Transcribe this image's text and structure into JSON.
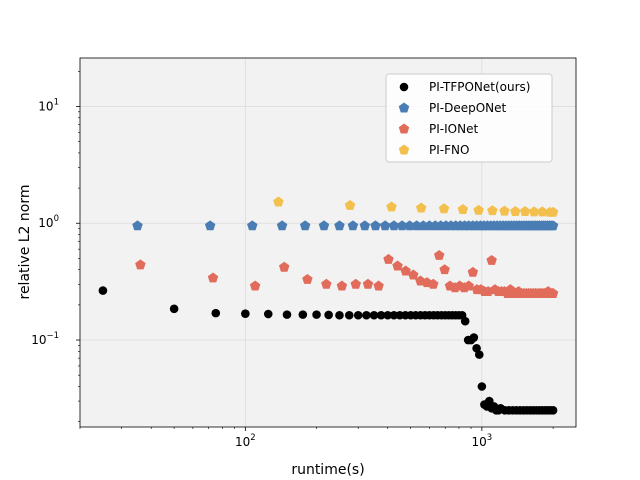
{
  "chart_data": {
    "type": "scatter",
    "title": "",
    "xlabel": "runtime(s)",
    "ylabel": "relative L2 norm",
    "xscale": "log",
    "yscale": "log",
    "xlim": [
      20,
      2500
    ],
    "ylim": [
      0.018,
      26
    ],
    "grid": true,
    "legend_position": "top-right",
    "x_ticks": [
      {
        "value": 100,
        "base": "10",
        "exp": "2"
      },
      {
        "value": 1000,
        "base": "10",
        "exp": "3"
      }
    ],
    "y_ticks": [
      {
        "value": 0.1,
        "base": "10",
        "exp": "−1"
      },
      {
        "value": 1,
        "base": "10",
        "exp": "0"
      },
      {
        "value": 10,
        "base": "10",
        "exp": "1"
      }
    ],
    "series": [
      {
        "name": "PI-TFPONet(ours)",
        "color": "#000000",
        "marker": "circle",
        "points": [
          [
            25,
            0.265
          ],
          [
            50,
            0.185
          ],
          [
            75,
            0.17
          ],
          [
            100,
            0.168
          ],
          [
            125,
            0.167
          ],
          [
            150,
            0.165
          ],
          [
            175,
            0.165
          ],
          [
            200,
            0.165
          ],
          [
            225,
            0.164
          ],
          [
            250,
            0.163
          ],
          [
            275,
            0.163
          ],
          [
            300,
            0.163
          ],
          [
            325,
            0.163
          ],
          [
            350,
            0.163
          ],
          [
            375,
            0.163
          ],
          [
            400,
            0.163
          ],
          [
            425,
            0.163
          ],
          [
            450,
            0.163
          ],
          [
            475,
            0.163
          ],
          [
            500,
            0.163
          ],
          [
            525,
            0.163
          ],
          [
            550,
            0.163
          ],
          [
            575,
            0.163
          ],
          [
            600,
            0.163
          ],
          [
            625,
            0.163
          ],
          [
            650,
            0.163
          ],
          [
            675,
            0.163
          ],
          [
            700,
            0.163
          ],
          [
            725,
            0.163
          ],
          [
            750,
            0.163
          ],
          [
            775,
            0.163
          ],
          [
            800,
            0.163
          ],
          [
            825,
            0.163
          ],
          [
            850,
            0.145
          ],
          [
            875,
            0.1
          ],
          [
            900,
            0.1
          ],
          [
            925,
            0.105
          ],
          [
            950,
            0.085
          ],
          [
            975,
            0.075
          ],
          [
            1000,
            0.04
          ],
          [
            1025,
            0.028
          ],
          [
            1050,
            0.027
          ],
          [
            1075,
            0.03
          ],
          [
            1100,
            0.026
          ],
          [
            1125,
            0.027
          ],
          [
            1150,
            0.025
          ],
          [
            1175,
            0.025
          ],
          [
            1200,
            0.026
          ],
          [
            1250,
            0.025
          ],
          [
            1300,
            0.025
          ],
          [
            1350,
            0.025
          ],
          [
            1400,
            0.025
          ],
          [
            1450,
            0.025
          ],
          [
            1500,
            0.025
          ],
          [
            1550,
            0.025
          ],
          [
            1600,
            0.025
          ],
          [
            1650,
            0.025
          ],
          [
            1700,
            0.025
          ],
          [
            1750,
            0.025
          ],
          [
            1800,
            0.025
          ],
          [
            1850,
            0.025
          ],
          [
            1900,
            0.025
          ],
          [
            1950,
            0.025
          ],
          [
            2000,
            0.025
          ]
        ]
      },
      {
        "name": "PI-DeepONet",
        "color": "#4a7db4",
        "marker": "pentagon",
        "points": [
          [
            35,
            0.95
          ],
          [
            71,
            0.95
          ],
          [
            107,
            0.95
          ],
          [
            143,
            0.95
          ],
          [
            179,
            0.95
          ],
          [
            215,
            0.95
          ],
          [
            250,
            0.95
          ],
          [
            285,
            0.95
          ],
          [
            320,
            0.95
          ],
          [
            355,
            0.95
          ],
          [
            390,
            0.95
          ],
          [
            425,
            0.95
          ],
          [
            460,
            0.95
          ],
          [
            495,
            0.95
          ],
          [
            530,
            0.95
          ],
          [
            565,
            0.95
          ],
          [
            600,
            0.95
          ],
          [
            635,
            0.95
          ],
          [
            670,
            0.95
          ],
          [
            705,
            0.95
          ],
          [
            740,
            0.95
          ],
          [
            775,
            0.95
          ],
          [
            810,
            0.95
          ],
          [
            845,
            0.95
          ],
          [
            880,
            0.95
          ],
          [
            915,
            0.95
          ],
          [
            950,
            0.95
          ],
          [
            985,
            0.95
          ],
          [
            1020,
            0.95
          ],
          [
            1055,
            0.95
          ],
          [
            1090,
            0.95
          ],
          [
            1125,
            0.95
          ],
          [
            1160,
            0.95
          ],
          [
            1195,
            0.95
          ],
          [
            1230,
            0.95
          ],
          [
            1265,
            0.95
          ],
          [
            1300,
            0.95
          ],
          [
            1335,
            0.95
          ],
          [
            1370,
            0.95
          ],
          [
            1405,
            0.95
          ],
          [
            1440,
            0.95
          ],
          [
            1475,
            0.95
          ],
          [
            1510,
            0.95
          ],
          [
            1545,
            0.95
          ],
          [
            1580,
            0.95
          ],
          [
            1615,
            0.95
          ],
          [
            1650,
            0.95
          ],
          [
            1685,
            0.95
          ],
          [
            1720,
            0.95
          ],
          [
            1755,
            0.95
          ],
          [
            1790,
            0.95
          ],
          [
            1825,
            0.95
          ],
          [
            1860,
            0.95
          ],
          [
            1895,
            0.95
          ],
          [
            1930,
            0.95
          ],
          [
            1965,
            0.95
          ],
          [
            2000,
            0.95
          ]
        ]
      },
      {
        "name": "PI-IONet",
        "color": "#e26c5b",
        "marker": "pentagon",
        "points": [
          [
            36,
            0.44
          ],
          [
            73,
            0.34
          ],
          [
            110,
            0.29
          ],
          [
            146,
            0.42
          ],
          [
            183,
            0.33
          ],
          [
            220,
            0.3
          ],
          [
            256,
            0.29
          ],
          [
            293,
            0.3
          ],
          [
            330,
            0.3
          ],
          [
            366,
            0.29
          ],
          [
            403,
            0.49
          ],
          [
            440,
            0.43
          ],
          [
            476,
            0.39
          ],
          [
            513,
            0.36
          ],
          [
            550,
            0.32
          ],
          [
            586,
            0.31
          ],
          [
            623,
            0.3
          ],
          [
            660,
            0.53
          ],
          [
            696,
            0.4
          ],
          [
            733,
            0.29
          ],
          [
            770,
            0.28
          ],
          [
            806,
            0.29
          ],
          [
            843,
            0.28
          ],
          [
            880,
            0.29
          ],
          [
            916,
            0.38
          ],
          [
            953,
            0.27
          ],
          [
            990,
            0.27
          ],
          [
            1026,
            0.26
          ],
          [
            1063,
            0.26
          ],
          [
            1100,
            0.48
          ],
          [
            1136,
            0.27
          ],
          [
            1173,
            0.26
          ],
          [
            1210,
            0.26
          ],
          [
            1246,
            0.26
          ],
          [
            1283,
            0.25
          ],
          [
            1320,
            0.27
          ],
          [
            1356,
            0.25
          ],
          [
            1393,
            0.25
          ],
          [
            1430,
            0.26
          ],
          [
            1466,
            0.25
          ],
          [
            1503,
            0.25
          ],
          [
            1540,
            0.25
          ],
          [
            1576,
            0.25
          ],
          [
            1613,
            0.25
          ],
          [
            1650,
            0.25
          ],
          [
            1686,
            0.25
          ],
          [
            1723,
            0.25
          ],
          [
            1760,
            0.25
          ],
          [
            1796,
            0.25
          ],
          [
            1833,
            0.25
          ],
          [
            1870,
            0.25
          ],
          [
            1906,
            0.26
          ],
          [
            1943,
            0.25
          ],
          [
            1980,
            0.25
          ],
          [
            2000,
            0.25
          ]
        ]
      },
      {
        "name": "PI-FNO",
        "color": "#f3c04e",
        "marker": "pentagon",
        "points": [
          [
            138,
            1.52
          ],
          [
            277,
            1.42
          ],
          [
            415,
            1.38
          ],
          [
            554,
            1.35
          ],
          [
            692,
            1.33
          ],
          [
            831,
            1.31
          ],
          [
            969,
            1.29
          ],
          [
            1108,
            1.28
          ],
          [
            1246,
            1.27
          ],
          [
            1385,
            1.26
          ],
          [
            1523,
            1.26
          ],
          [
            1662,
            1.25
          ],
          [
            1800,
            1.25
          ],
          [
            1939,
            1.24
          ],
          [
            2000,
            1.24
          ]
        ]
      }
    ]
  }
}
